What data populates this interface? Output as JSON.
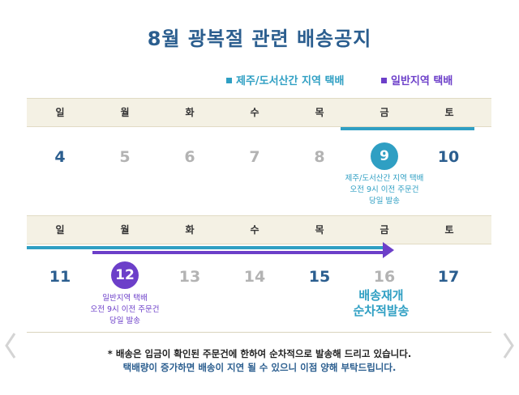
{
  "title": "8월 광복절 관련 배송공지",
  "legend": {
    "jeju": "제주/도서산간 지역 택배",
    "general": "일반지역 택배",
    "jeju_color": "#2f9fc3",
    "general_color": "#6c3fc9"
  },
  "weekdays": [
    "일",
    "월",
    "화",
    "수",
    "목",
    "금",
    "토"
  ],
  "week1": {
    "dates": [
      "4",
      "5",
      "6",
      "7",
      "8",
      "9",
      "10"
    ],
    "note_jeju": [
      "제주/도서산간 지역 택배",
      "오전 9시 이전 주문건",
      "당일 발송"
    ]
  },
  "week2": {
    "dates": [
      "11",
      "12",
      "13",
      "14",
      "15",
      "16",
      "17"
    ],
    "note_general": [
      "일반지역 택배",
      "오전 9시 이전 주문건",
      "당일 발송"
    ],
    "resume": [
      "배송재개",
      "순차적발송"
    ]
  },
  "footer": {
    "line1": "* 배송은 입금이 확인된 주문건에 한하여 순차적으로 발송해 드리고 있습니다.",
    "line2": "택배량이 증가하면 배송이 지연 될 수 있으니 이점 양해 부탁드립니다."
  },
  "nav": {
    "prev_icon": "chevron-left-icon",
    "next_icon": "chevron-right-icon"
  }
}
